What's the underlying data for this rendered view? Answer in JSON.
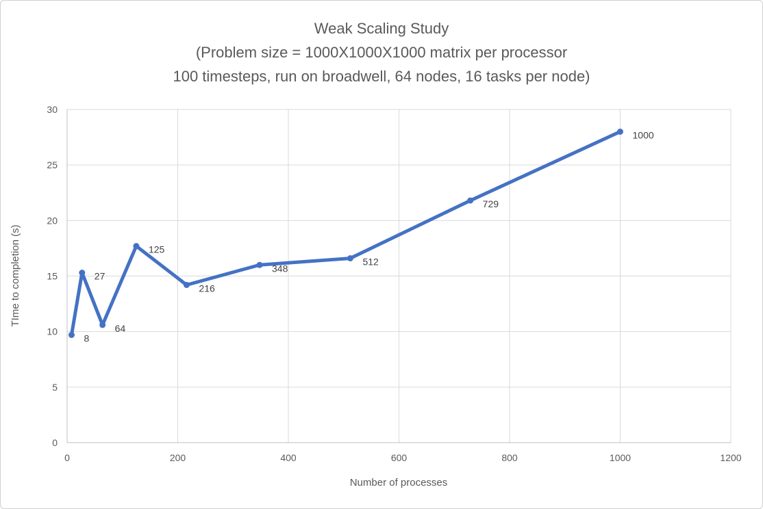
{
  "chart_data": {
    "type": "scatter",
    "title": [
      "Weak Scaling Study",
      "(Problem size = 1000X1000X1000 matrix per processor",
      "100 timesteps, run on broadwell, 64 nodes, 16 tasks per node)"
    ],
    "xlabel": "Number  of processes",
    "ylabel": "TIme to completion (s)",
    "xlim": [
      0,
      1200
    ],
    "ylim": [
      0,
      30
    ],
    "xticks": [
      0,
      200,
      400,
      600,
      800,
      1000,
      1200
    ],
    "yticks": [
      0,
      5,
      10,
      15,
      20,
      25,
      30
    ],
    "grid": true,
    "legend": "none",
    "line_color": "#4472c4",
    "series": [
      {
        "points": [
          {
            "x": 8,
            "y": 9.7,
            "label": "8"
          },
          {
            "x": 27,
            "y": 15.3,
            "label": "27"
          },
          {
            "x": 64,
            "y": 10.6,
            "label": "64"
          },
          {
            "x": 125,
            "y": 17.7,
            "label": "125"
          },
          {
            "x": 216,
            "y": 14.2,
            "label": "216"
          },
          {
            "x": 348,
            "y": 16.0,
            "label": "348"
          },
          {
            "x": 512,
            "y": 16.6,
            "label": "512"
          },
          {
            "x": 729,
            "y": 21.8,
            "label": "729"
          },
          {
            "x": 1000,
            "y": 28.0,
            "label": "1000"
          }
        ]
      }
    ]
  }
}
